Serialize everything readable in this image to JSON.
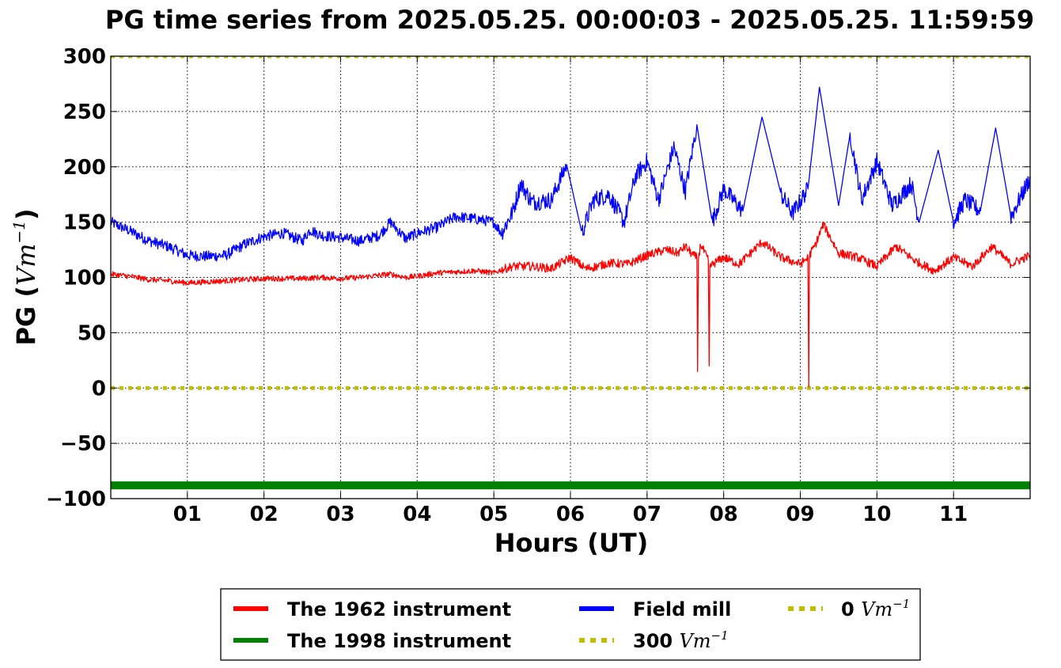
{
  "chart_data": {
    "type": "line",
    "title": "PG time series from 2025.05.25. 00:00:03 - 2025.05.25. 11:59:59",
    "xlabel": "Hours (UT)",
    "ylabel": {
      "prefix": "PG (",
      "math": "Vm",
      "exp": "−1",
      "suffix": ")"
    },
    "xlim": [
      0,
      12
    ],
    "ylim": [
      -100,
      300
    ],
    "xticks": [
      1,
      2,
      3,
      4,
      5,
      6,
      7,
      8,
      9,
      10,
      11
    ],
    "xtick_labels": [
      "01",
      "02",
      "03",
      "04",
      "05",
      "06",
      "07",
      "08",
      "09",
      "10",
      "11"
    ],
    "yticks": [
      -100,
      -50,
      0,
      50,
      100,
      150,
      200,
      250,
      300
    ],
    "ytick_labels": [
      "−100",
      "−50",
      "0",
      "50",
      "100",
      "150",
      "200",
      "250",
      "300"
    ],
    "grid": true,
    "legend_placement": "below",
    "series": [
      {
        "name": "The 1962 instrument",
        "color": "#ff0000",
        "x": [
          0,
          0.25,
          0.5,
          0.75,
          1,
          1.25,
          1.5,
          1.75,
          2,
          2.25,
          2.5,
          2.75,
          3,
          3.25,
          3.5,
          3.65,
          3.85,
          4,
          4.25,
          4.5,
          4.75,
          5,
          5.1,
          5.25,
          5.5,
          5.75,
          6,
          6.2,
          6.35,
          6.5,
          6.75,
          7,
          7.25,
          7.4,
          7.5,
          7.6,
          7.65,
          7.66,
          7.67,
          7.7,
          7.8,
          7.81,
          7.82,
          7.9,
          8,
          8.2,
          8.5,
          8.75,
          9,
          9.1,
          9.11,
          9.12,
          9.2,
          9.3,
          9.5,
          9.75,
          10,
          10.25,
          10.5,
          10.75,
          11,
          11.25,
          11.5,
          11.75,
          12
        ],
        "y": [
          103,
          101,
          98,
          97,
          95,
          96,
          97,
          98,
          99,
          99,
          99,
          100,
          99,
          100,
          102,
          103,
          100,
          101,
          104,
          105,
          106,
          104,
          107,
          110,
          110,
          108,
          118,
          108,
          110,
          113,
          112,
          120,
          125,
          122,
          128,
          120,
          118,
          15,
          118,
          130,
          115,
          20,
          110,
          114,
          118,
          112,
          132,
          118,
          112,
          118,
          1,
          120,
          130,
          148,
          122,
          118,
          110,
          128,
          115,
          106,
          118,
          110,
          128,
          112,
          120
        ]
      },
      {
        "name": "The 1998 instrument",
        "color": "#008000",
        "x": [
          0,
          12
        ],
        "y": [
          -88,
          -88
        ]
      },
      {
        "name": "Field mill",
        "color": "#0000ff",
        "x": [
          0,
          0.25,
          0.5,
          0.75,
          1,
          1.25,
          1.5,
          1.75,
          2,
          2.25,
          2.5,
          2.6,
          2.75,
          3,
          3.25,
          3.5,
          3.65,
          3.85,
          4,
          4.25,
          4.5,
          4.75,
          5,
          5.1,
          5.25,
          5.35,
          5.5,
          5.75,
          5.95,
          6.15,
          6.3,
          6.5,
          6.7,
          6.85,
          7,
          7.15,
          7.35,
          7.5,
          7.65,
          7.85,
          8.0,
          8.25,
          8.5,
          8.75,
          8.9,
          9.1,
          9.25,
          9.5,
          9.65,
          9.8,
          10.0,
          10.2,
          10.45,
          10.55,
          10.8,
          11.0,
          11.15,
          11.35,
          11.55,
          11.75,
          12.0
        ],
        "y": [
          150,
          142,
          133,
          128,
          120,
          119,
          120,
          130,
          137,
          140,
          133,
          143,
          138,
          136,
          133,
          138,
          150,
          135,
          140,
          145,
          155,
          153,
          150,
          140,
          160,
          185,
          168,
          170,
          202,
          140,
          170,
          175,
          150,
          192,
          205,
          170,
          218,
          178,
          238,
          150,
          180,
          160,
          245,
          175,
          158,
          180,
          272,
          165,
          230,
          170,
          205,
          165,
          185,
          150,
          215,
          150,
          170,
          160,
          235,
          155,
          190
        ]
      },
      {
        "name": "300 Vm⁻¹",
        "color": "#bfbf00",
        "x": [
          0,
          12
        ],
        "y": [
          300,
          300
        ]
      },
      {
        "name": "0 Vm⁻¹",
        "color": "#bfbf00",
        "x": [
          0,
          12
        ],
        "y": [
          0,
          0
        ]
      }
    ],
    "legend": [
      {
        "label": "The 1962 instrument",
        "color": "#ff0000",
        "style": "solid"
      },
      {
        "label": "The 1998 instrument",
        "color": "#008000",
        "style": "solid"
      },
      {
        "label": "Field mill",
        "color": "#0000ff",
        "style": "solid"
      },
      {
        "label": "300",
        "math": "Vm",
        "exp": "−1",
        "color": "#bfbf00",
        "style": "dotted"
      },
      {
        "label": "0",
        "math": "Vm",
        "exp": "−1",
        "color": "#bfbf00",
        "style": "dotted"
      }
    ]
  }
}
